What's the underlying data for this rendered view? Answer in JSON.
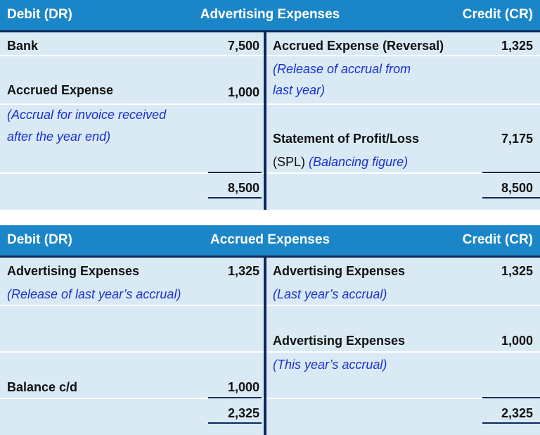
{
  "accounts": [
    {
      "header": {
        "debit": "Debit (DR)",
        "title": "Advertising Expenses",
        "credit": "Credit (CR)"
      },
      "debit": {
        "entry1_label": "Bank",
        "entry1_amount": "7,500",
        "entry2_label": "Accrued Expense",
        "entry2_amount": "1,000",
        "entry2_note_line1": "(Accrual for invoice received",
        "entry2_note_line2": "after the year end)",
        "total": "8,500"
      },
      "credit": {
        "entry1_label": "Accrued Expense (Reversal)",
        "entry1_amount": "1,325",
        "entry1_note_line1": "(Release of accrual from",
        "entry1_note_line2": "last year)",
        "entry2_label": "Statement of Profit/Loss",
        "entry2_amount": "7,175",
        "entry2_sub": "(SPL)",
        "entry2_note": "(Balancing figure)",
        "total": "8,500"
      }
    },
    {
      "header": {
        "debit": "Debit (DR)",
        "title": "Accrued Expenses",
        "credit": "Credit (CR)"
      },
      "debit": {
        "entry1_label": "Advertising Expenses",
        "entry1_amount": "1,325",
        "entry1_note": "(Release of last year’s accrual)",
        "entry2_label": "Balance c/d",
        "entry2_amount": "1,000",
        "total": "2,325"
      },
      "credit": {
        "entry1_label": "Advertising Expenses",
        "entry1_amount": "1,325",
        "entry1_note": "(Last year’s accrual)",
        "entry2_label": "Advertising Expenses",
        "entry2_amount": "1,000",
        "entry2_note": "(This year’s accrual)",
        "total": "2,325"
      }
    }
  ]
}
